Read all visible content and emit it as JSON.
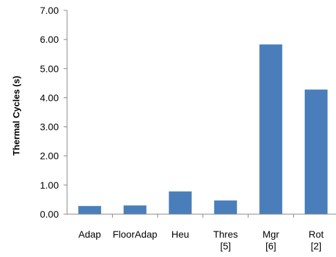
{
  "chart_data": {
    "type": "bar",
    "title": "",
    "xlabel": "",
    "ylabel": "Thermal Cycles (s)",
    "ylim": [
      0,
      7
    ],
    "yticks": [
      "0.00",
      "1.00",
      "2.00",
      "3.00",
      "4.00",
      "5.00",
      "6.00",
      "7.00"
    ],
    "categories": [
      [
        "Adap"
      ],
      [
        "FloorAdap"
      ],
      [
        "Heu"
      ],
      [
        "Thres",
        "[5]"
      ],
      [
        "Mgr",
        "[6]"
      ],
      [
        "Rot",
        "[2]"
      ]
    ],
    "values": [
      0.28,
      0.3,
      0.78,
      0.47,
      5.83,
      4.28
    ],
    "bar_color": "#4a7ebb",
    "axis_color": "#868686",
    "grid": false,
    "legend": "none"
  }
}
